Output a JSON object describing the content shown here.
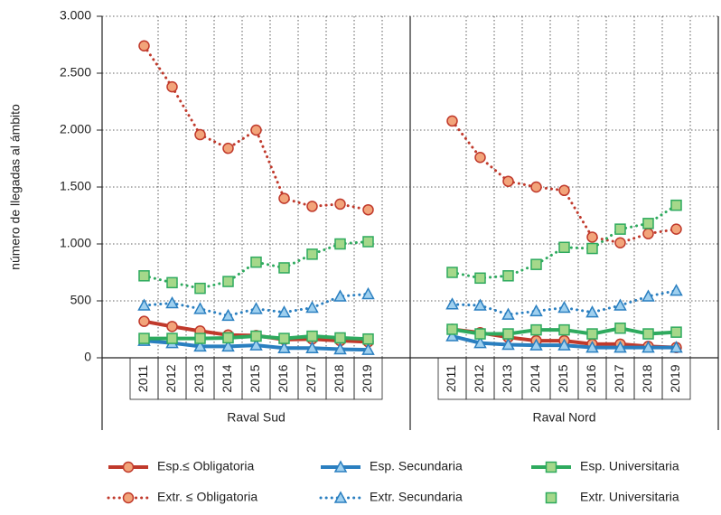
{
  "chart_data": {
    "type": "line",
    "y_label": "número de llegadas al ámbito",
    "groups": [
      "Raval Sud",
      "Raval Nord"
    ],
    "categories": [
      "2011",
      "2012",
      "2013",
      "2014",
      "2015",
      "2016",
      "2017",
      "2018",
      "2019"
    ],
    "ylim": [
      0,
      3000
    ],
    "yticks": [
      0,
      500,
      {
        "value": 1000,
        "label": "1.000"
      },
      {
        "value": 1500,
        "label": "1.500"
      },
      {
        "value": 2000,
        "label": "2.000"
      },
      {
        "value": 2500,
        "label": "2.500"
      },
      {
        "value": 3000,
        "label": "3.000"
      }
    ],
    "grid": true,
    "series": [
      {
        "name": "Esp.≤ Obligatoria",
        "color": "#c0392b",
        "marker_fill": "#f2a47a",
        "marker": "circle",
        "dash": "solid",
        "legend_line": true,
        "values": [
          [
            320,
            275,
            235,
            200,
            195,
            160,
            165,
            150,
            140
          ],
          [
            250,
            220,
            180,
            150,
            150,
            120,
            120,
            100,
            90
          ]
        ]
      },
      {
        "name": "Esp. Secundaria",
        "color": "#2a7fc0",
        "marker_fill": "#9fd0ef",
        "marker": "triangle",
        "dash": "solid",
        "legend_line": true,
        "values": [
          [
            150,
            130,
            100,
            100,
            110,
            85,
            85,
            75,
            70
          ],
          [
            190,
            130,
            115,
            110,
            110,
            90,
            90,
            90,
            90
          ]
        ]
      },
      {
        "name": "Esp. Universitaria",
        "color": "#2eaa5e",
        "marker_fill": "#a5d88a",
        "marker": "square",
        "dash": "solid",
        "legend_line": true,
        "values": [
          [
            170,
            170,
            170,
            175,
            190,
            170,
            190,
            175,
            165
          ],
          [
            250,
            210,
            210,
            245,
            245,
            210,
            260,
            210,
            225
          ]
        ]
      },
      {
        "name": "Extr. ≤ Obligatoria",
        "color": "#c0392b",
        "marker_fill": "#f2a47a",
        "marker": "circle",
        "dash": "dotted",
        "legend_line": true,
        "values": [
          [
            2740,
            2380,
            1960,
            1840,
            2000,
            1400,
            1330,
            1350,
            1300
          ],
          [
            2080,
            1760,
            1550,
            1500,
            1470,
            1060,
            1010,
            1090,
            1130
          ]
        ]
      },
      {
        "name": "Extr. Secundaria",
        "color": "#2a7fc0",
        "marker_fill": "#9fd0ef",
        "marker": "triangle",
        "dash": "dotted",
        "legend_line": true,
        "values": [
          [
            460,
            480,
            430,
            370,
            430,
            400,
            440,
            540,
            560
          ],
          [
            470,
            460,
            380,
            410,
            440,
            400,
            460,
            540,
            590
          ]
        ]
      },
      {
        "name": "Extr. Universitaria",
        "color": "#2eaa5e",
        "marker_fill": "#a5d88a",
        "marker": "square",
        "dash": "dotted",
        "legend_line": false,
        "values": [
          [
            720,
            660,
            610,
            670,
            840,
            790,
            910,
            1000,
            1020
          ],
          [
            750,
            700,
            720,
            820,
            970,
            960,
            1130,
            1180,
            1340
          ]
        ]
      }
    ]
  }
}
